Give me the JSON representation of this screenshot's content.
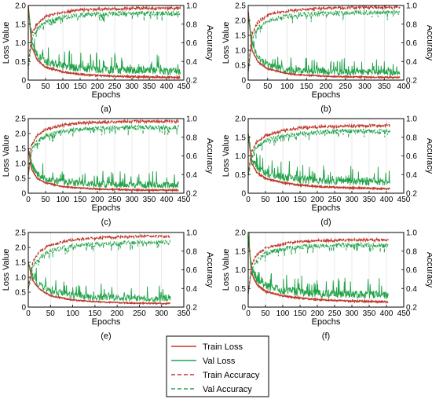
{
  "chart_data": [
    {
      "type": "line",
      "panel_label": "(a)",
      "xlabel": "Epochs",
      "ylabel": "Loss Value",
      "y2label": "Accuracy",
      "xlim": [
        0,
        450
      ],
      "xticks": [
        0,
        50,
        100,
        150,
        200,
        250,
        300,
        350,
        400,
        450
      ],
      "ylim": [
        0,
        2.0
      ],
      "yticks": [
        0,
        0.5,
        1.0,
        1.5,
        2.0
      ],
      "y2lim": [
        0.2,
        1.0
      ],
      "y2ticks": [
        0.2,
        0.4,
        0.6,
        0.8,
        1.0
      ],
      "epochs": 440,
      "series": [
        {
          "name": "Train Loss",
          "axis": "left",
          "x": [
            0,
            10,
            25,
            50,
            100,
            150,
            200,
            300,
            440
          ],
          "y": [
            2.0,
            0.9,
            0.55,
            0.35,
            0.22,
            0.16,
            0.12,
            0.09,
            0.07
          ]
        },
        {
          "name": "Val Loss",
          "axis": "left",
          "x": [
            0,
            10,
            25,
            50,
            100,
            150,
            200,
            300,
            440
          ],
          "y": [
            1.9,
            1.0,
            0.65,
            0.45,
            0.32,
            0.27,
            0.24,
            0.22,
            0.2
          ]
        },
        {
          "name": "Train Accuracy",
          "axis": "right",
          "x": [
            0,
            10,
            25,
            50,
            100,
            150,
            200,
            300,
            440
          ],
          "y": [
            0.35,
            0.7,
            0.8,
            0.88,
            0.93,
            0.95,
            0.96,
            0.97,
            0.97
          ]
        },
        {
          "name": "Val Accuracy",
          "axis": "right",
          "x": [
            0,
            10,
            25,
            50,
            100,
            150,
            200,
            300,
            440
          ],
          "y": [
            0.3,
            0.65,
            0.75,
            0.83,
            0.88,
            0.9,
            0.91,
            0.92,
            0.92
          ]
        }
      ]
    },
    {
      "type": "line",
      "panel_label": "(b)",
      "xlabel": "Epochs",
      "ylabel": "Loss Value",
      "y2label": "Accuracy",
      "xlim": [
        0,
        400
      ],
      "xticks": [
        0,
        50,
        100,
        150,
        200,
        250,
        300,
        350,
        400
      ],
      "ylim": [
        0,
        2.5
      ],
      "yticks": [
        0,
        0.5,
        1.0,
        1.5,
        2.0,
        2.5
      ],
      "y2lim": [
        0.2,
        1.0
      ],
      "y2ticks": [
        0.2,
        0.4,
        0.6,
        0.8,
        1.0
      ],
      "epochs": 390,
      "series": [
        {
          "name": "Train Loss",
          "axis": "left",
          "x": [
            0,
            10,
            25,
            50,
            100,
            150,
            200,
            300,
            390
          ],
          "y": [
            2.3,
            1.0,
            0.6,
            0.38,
            0.22,
            0.16,
            0.13,
            0.1,
            0.09
          ]
        },
        {
          "name": "Val Loss",
          "axis": "left",
          "x": [
            0,
            10,
            25,
            50,
            100,
            150,
            200,
            300,
            390
          ],
          "y": [
            2.2,
            1.1,
            0.7,
            0.45,
            0.3,
            0.26,
            0.24,
            0.22,
            0.21
          ]
        },
        {
          "name": "Train Accuracy",
          "axis": "right",
          "x": [
            0,
            10,
            25,
            50,
            100,
            150,
            200,
            300,
            390
          ],
          "y": [
            0.3,
            0.7,
            0.82,
            0.9,
            0.94,
            0.96,
            0.97,
            0.98,
            0.98
          ]
        },
        {
          "name": "Val Accuracy",
          "axis": "right",
          "x": [
            0,
            10,
            25,
            50,
            100,
            150,
            200,
            300,
            390
          ],
          "y": [
            0.28,
            0.65,
            0.76,
            0.84,
            0.89,
            0.91,
            0.92,
            0.93,
            0.93
          ]
        }
      ]
    },
    {
      "type": "line",
      "panel_label": "(c)",
      "xlabel": "Epochs",
      "ylabel": "Loss Value",
      "y2label": "Accuracy",
      "xlim": [
        0,
        450
      ],
      "xticks": [
        0,
        50,
        100,
        150,
        200,
        250,
        300,
        350,
        400,
        450
      ],
      "ylim": [
        0,
        2.5
      ],
      "yticks": [
        0,
        0.5,
        1.0,
        1.5,
        2.0,
        2.5
      ],
      "y2lim": [
        0.2,
        1.0
      ],
      "y2ticks": [
        0.2,
        0.4,
        0.6,
        0.8,
        1.0
      ],
      "epochs": 435,
      "series": [
        {
          "name": "Train Loss",
          "axis": "left",
          "x": [
            0,
            10,
            25,
            50,
            100,
            150,
            200,
            300,
            435
          ],
          "y": [
            1.5,
            0.8,
            0.5,
            0.35,
            0.22,
            0.17,
            0.14,
            0.11,
            0.1
          ]
        },
        {
          "name": "Val Loss",
          "axis": "left",
          "x": [
            0,
            10,
            25,
            50,
            100,
            150,
            200,
            300,
            435
          ],
          "y": [
            1.5,
            0.9,
            0.6,
            0.45,
            0.33,
            0.28,
            0.26,
            0.24,
            0.23
          ]
        },
        {
          "name": "Train Accuracy",
          "axis": "right",
          "x": [
            0,
            10,
            25,
            50,
            100,
            150,
            200,
            300,
            435
          ],
          "y": [
            0.4,
            0.72,
            0.82,
            0.88,
            0.93,
            0.95,
            0.96,
            0.97,
            0.97
          ]
        },
        {
          "name": "Val Accuracy",
          "axis": "right",
          "x": [
            0,
            10,
            25,
            50,
            100,
            150,
            200,
            300,
            435
          ],
          "y": [
            0.38,
            0.66,
            0.76,
            0.82,
            0.87,
            0.89,
            0.9,
            0.91,
            0.91
          ]
        }
      ]
    },
    {
      "type": "line",
      "panel_label": "(d)",
      "xlabel": "Epochs",
      "ylabel": "Loss Value",
      "y2label": "Accuracy",
      "xlim": [
        0,
        450
      ],
      "xticks": [
        0,
        50,
        100,
        150,
        200,
        250,
        300,
        350,
        400,
        450
      ],
      "ylim": [
        0,
        2.0
      ],
      "yticks": [
        0,
        0.5,
        1.0,
        1.5,
        2.0
      ],
      "y2lim": [
        0.2,
        1.0
      ],
      "y2ticks": [
        0.2,
        0.4,
        0.6,
        0.8,
        1.0
      ],
      "epochs": 410,
      "series": [
        {
          "name": "Train Loss",
          "axis": "left",
          "x": [
            0,
            10,
            25,
            50,
            100,
            150,
            200,
            300,
            410
          ],
          "y": [
            1.6,
            0.8,
            0.55,
            0.4,
            0.28,
            0.22,
            0.18,
            0.14,
            0.12
          ]
        },
        {
          "name": "Val Loss",
          "axis": "left",
          "x": [
            0,
            10,
            25,
            50,
            100,
            150,
            200,
            300,
            410
          ],
          "y": [
            1.6,
            0.9,
            0.65,
            0.5,
            0.38,
            0.33,
            0.3,
            0.28,
            0.27
          ]
        },
        {
          "name": "Train Accuracy",
          "axis": "right",
          "x": [
            0,
            10,
            25,
            50,
            100,
            150,
            200,
            300,
            410
          ],
          "y": [
            0.4,
            0.65,
            0.75,
            0.82,
            0.87,
            0.9,
            0.91,
            0.92,
            0.93
          ]
        },
        {
          "name": "Val Accuracy",
          "axis": "right",
          "x": [
            0,
            10,
            25,
            50,
            100,
            150,
            200,
            300,
            410
          ],
          "y": [
            0.38,
            0.6,
            0.7,
            0.77,
            0.82,
            0.84,
            0.86,
            0.87,
            0.87
          ]
        }
      ]
    },
    {
      "type": "line",
      "panel_label": "(e)",
      "xlabel": "Epochs",
      "ylabel": "Loss Value",
      "y2label": "Accuracy",
      "xlim": [
        0,
        350
      ],
      "xticks": [
        0,
        50,
        100,
        150,
        200,
        250,
        300,
        350
      ],
      "ylim": [
        0,
        2.5
      ],
      "yticks": [
        0,
        0.5,
        1.0,
        1.5,
        2.0,
        2.5
      ],
      "y2lim": [
        0.2,
        1.0
      ],
      "y2ticks": [
        0.2,
        0.4,
        0.6,
        0.8,
        1.0
      ],
      "epochs": 320,
      "series": [
        {
          "name": "Train Loss",
          "axis": "left",
          "x": [
            0,
            10,
            25,
            50,
            100,
            150,
            200,
            250,
            320
          ],
          "y": [
            1.5,
            0.9,
            0.6,
            0.38,
            0.24,
            0.18,
            0.15,
            0.13,
            0.12
          ]
        },
        {
          "name": "Val Loss",
          "axis": "left",
          "x": [
            0,
            10,
            25,
            50,
            100,
            150,
            200,
            250,
            320
          ],
          "y": [
            1.5,
            1.0,
            0.7,
            0.48,
            0.34,
            0.29,
            0.27,
            0.25,
            0.24
          ]
        },
        {
          "name": "Train Accuracy",
          "axis": "right",
          "x": [
            0,
            10,
            25,
            50,
            100,
            150,
            200,
            250,
            320
          ],
          "y": [
            0.4,
            0.68,
            0.8,
            0.87,
            0.92,
            0.94,
            0.95,
            0.96,
            0.96
          ]
        },
        {
          "name": "Val Accuracy",
          "axis": "right",
          "x": [
            0,
            10,
            25,
            50,
            100,
            150,
            200,
            250,
            320
          ],
          "y": [
            0.38,
            0.63,
            0.74,
            0.81,
            0.86,
            0.88,
            0.89,
            0.9,
            0.9
          ]
        }
      ]
    },
    {
      "type": "line",
      "panel_label": "(f)",
      "xlabel": "Epochs",
      "ylabel": "Loss Value",
      "y2label": "Accuracy",
      "xlim": [
        0,
        450
      ],
      "xticks": [
        0,
        50,
        100,
        150,
        200,
        250,
        300,
        350,
        400,
        450
      ],
      "ylim": [
        0,
        2.0
      ],
      "yticks": [
        0,
        0.5,
        1.0,
        1.5,
        2.0
      ],
      "y2lim": [
        0.2,
        1.0
      ],
      "y2ticks": [
        0.2,
        0.4,
        0.6,
        0.8,
        1.0
      ],
      "epochs": 405,
      "series": [
        {
          "name": "Train Loss",
          "axis": "left",
          "x": [
            0,
            10,
            25,
            50,
            100,
            150,
            200,
            300,
            405
          ],
          "y": [
            1.9,
            0.9,
            0.6,
            0.42,
            0.3,
            0.24,
            0.2,
            0.16,
            0.14
          ]
        },
        {
          "name": "Val Loss",
          "axis": "left",
          "x": [
            0,
            10,
            25,
            50,
            100,
            150,
            200,
            300,
            405
          ],
          "y": [
            1.9,
            1.0,
            0.7,
            0.52,
            0.4,
            0.35,
            0.32,
            0.3,
            0.29
          ]
        },
        {
          "name": "Train Accuracy",
          "axis": "right",
          "x": [
            0,
            10,
            25,
            50,
            100,
            150,
            200,
            300,
            405
          ],
          "y": [
            0.35,
            0.65,
            0.76,
            0.83,
            0.88,
            0.9,
            0.91,
            0.92,
            0.92
          ]
        },
        {
          "name": "Val Accuracy",
          "axis": "right",
          "x": [
            0,
            10,
            25,
            50,
            100,
            150,
            200,
            300,
            405
          ],
          "y": [
            0.33,
            0.6,
            0.71,
            0.78,
            0.83,
            0.85,
            0.86,
            0.87,
            0.87
          ]
        }
      ]
    }
  ],
  "legend": {
    "items": [
      {
        "label": "Train Loss",
        "color": "#c0392b",
        "dash": false
      },
      {
        "label": "Val Loss",
        "color": "#22a34a",
        "dash": false
      },
      {
        "label": "Train Accuracy",
        "color": "#c0392b",
        "dash": true
      },
      {
        "label": "Val Accuracy",
        "color": "#22a34a",
        "dash": true
      }
    ]
  },
  "colors": {
    "train": "#c0392b",
    "val": "#22a34a",
    "grid": "#d9d9d9"
  }
}
